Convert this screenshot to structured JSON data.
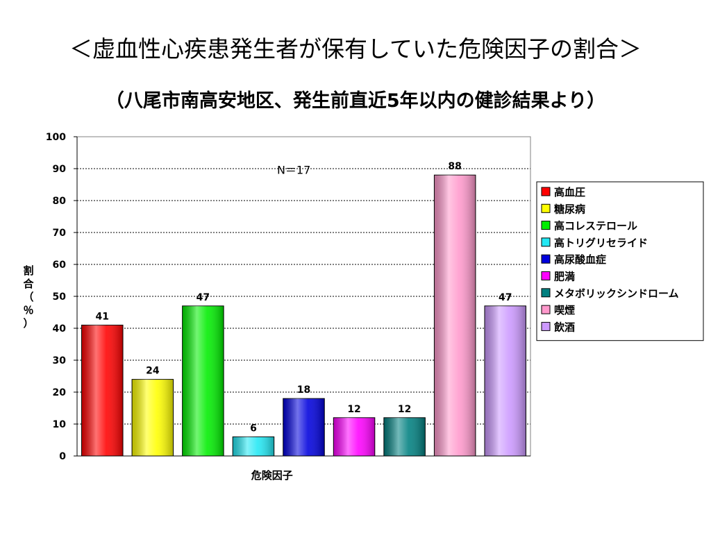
{
  "slide": {
    "title": "＜虚血性心疾患発生者が保有していた危険因子の割合＞",
    "subtitle": "（八尾市南高安地区、発生前直近5年以内の健診結果より）"
  },
  "chart_data": {
    "type": "bar",
    "xlabel": "危険因子",
    "ylabel": "割合（％）",
    "ylim": [
      0,
      100
    ],
    "yticks": [
      0,
      10,
      20,
      30,
      40,
      50,
      60,
      70,
      80,
      90,
      100
    ],
    "grid": true,
    "legend_position": "right",
    "annotation": "N＝17",
    "categories": [
      "高血圧",
      "糖尿病",
      "高コレステロール",
      "高トリグリセライド",
      "高尿酸血症",
      "肥満",
      "メタボリックシンドローム",
      "喫煙",
      "飲酒"
    ],
    "values": [
      41,
      24,
      47,
      6,
      18,
      12,
      12,
      88,
      47
    ],
    "colors": [
      "#ff0000",
      "#ffff00",
      "#00ee00",
      "#22e8f4",
      "#0000dd",
      "#ff00ff",
      "#008080",
      "#ff99cc",
      "#cc99ff"
    ]
  }
}
